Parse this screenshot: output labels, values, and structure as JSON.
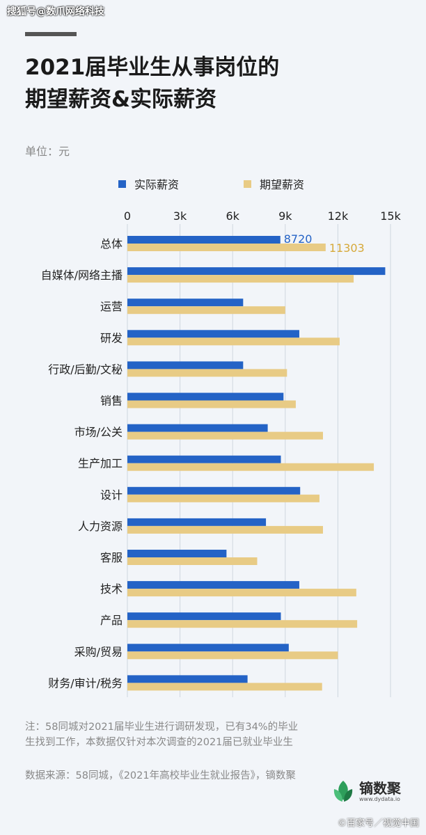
{
  "watermark_top": "搜狐号@数爪网络科技",
  "title_lines": [
    "2021届毕业生从事岗位的",
    "期望薪资&实际薪资"
  ],
  "unit": "单位：元",
  "legend": {
    "actual": "实际薪资",
    "expected": "期望薪资"
  },
  "colors": {
    "actual": "#2463c6",
    "expected": "#e8cb85",
    "expected_label": "#d6a93a"
  },
  "chart_data": {
    "type": "bar",
    "orientation": "horizontal",
    "xlim": [
      0,
      15000
    ],
    "ticks": [
      0,
      3000,
      6000,
      9000,
      12000,
      15000
    ],
    "tick_labels": [
      "0",
      "3k",
      "6k",
      "9k",
      "12k",
      "15k"
    ],
    "grid": true,
    "categories": [
      "总体",
      "自媒体/网络主播",
      "运营",
      "研发",
      "行政/后勤/文秘",
      "销售",
      "市场/公关",
      "生产加工",
      "设计",
      "人力资源",
      "客服",
      "技术",
      "产品",
      "采购/贸易",
      "财务/审计/税务"
    ],
    "series": [
      {
        "name": "实际薪资",
        "values": [
          8720,
          14700,
          6600,
          9800,
          6600,
          8900,
          8000,
          8750,
          9850,
          7900,
          5650,
          9800,
          8750,
          9200,
          6850
        ]
      },
      {
        "name": "期望薪资",
        "values": [
          11303,
          12900,
          9000,
          12100,
          9100,
          9600,
          11150,
          14050,
          10950,
          11150,
          7400,
          13050,
          13100,
          12000,
          11100
        ]
      }
    ],
    "data_labels": {
      "actual": "8720",
      "expected": "11303"
    }
  },
  "footnote_1": "注：58同城对2021届毕业生进行调研发现，已有34%的毕业生找到工作，本数据仅针对本次调查的2021届已就业毕业生",
  "footnote_2": "数据来源：58同城，《2021年高校毕业生就业报告》，镝数聚",
  "logo": {
    "name": "镝数聚",
    "url": "www.dydata.io"
  },
  "watermark_bottom": "©百家号／视觉中国"
}
